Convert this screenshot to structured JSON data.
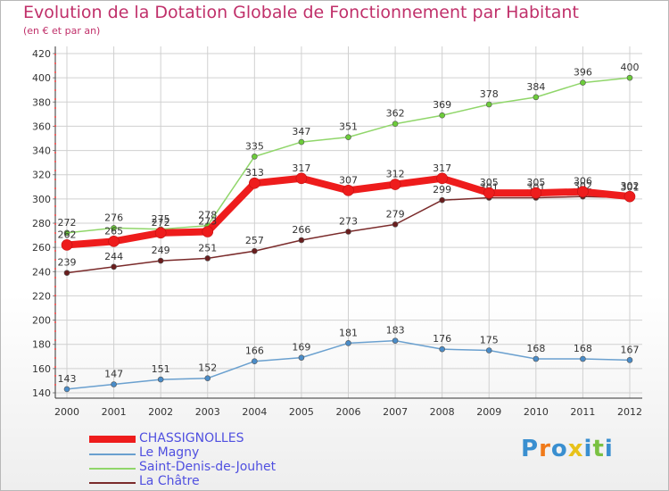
{
  "title": "Evolution de la Dotation Globale de Fonctionnement par Habitant",
  "subtitle": "(en € et par an)",
  "logo": "Proxiti",
  "chart_data": {
    "type": "line",
    "title": "Evolution de la Dotation Globale de Fonctionnement par Habitant",
    "ylabel": "(en € et par an)",
    "xlabel": "",
    "x": [
      "2000",
      "2001",
      "2002",
      "2003",
      "2004",
      "2005",
      "2006",
      "2007",
      "2008",
      "2009",
      "2010",
      "2011",
      "2012"
    ],
    "ylim": [
      140,
      420
    ],
    "ytick_step": 20,
    "grid": true,
    "series": [
      {
        "name": "Saint-Denis-de-Jouhet",
        "color": "#90d66a",
        "marker": "#6ccc3a",
        "width": 1.5,
        "values": [
          272,
          276,
          275,
          278,
          335,
          347,
          351,
          362,
          369,
          378,
          384,
          396,
          400
        ]
      },
      {
        "name": "La Châtre",
        "color": "#7a2a2a",
        "marker": "#6a1e1e",
        "width": 1.5,
        "values": [
          239,
          244,
          249,
          251,
          257,
          266,
          273,
          279,
          299,
          301,
          301,
          302,
          301
        ]
      },
      {
        "name": "Le Magny",
        "color": "#6aa0cf",
        "marker": "#4a8cc8",
        "width": 1.5,
        "values": [
          143,
          147,
          151,
          152,
          166,
          169,
          181,
          183,
          176,
          175,
          168,
          168,
          167
        ]
      },
      {
        "name": "CHASSIGNOLLES",
        "color": "#ee1c1c",
        "marker": "#ee1c1c",
        "width": 8,
        "values": [
          262,
          265,
          272,
          273,
          313,
          317,
          307,
          312,
          317,
          305,
          305,
          306,
          302
        ]
      }
    ],
    "legend_order": [
      "CHASSIGNOLLES",
      "Le Magny",
      "Saint-Denis-de-Jouhet",
      "La Châtre"
    ]
  }
}
